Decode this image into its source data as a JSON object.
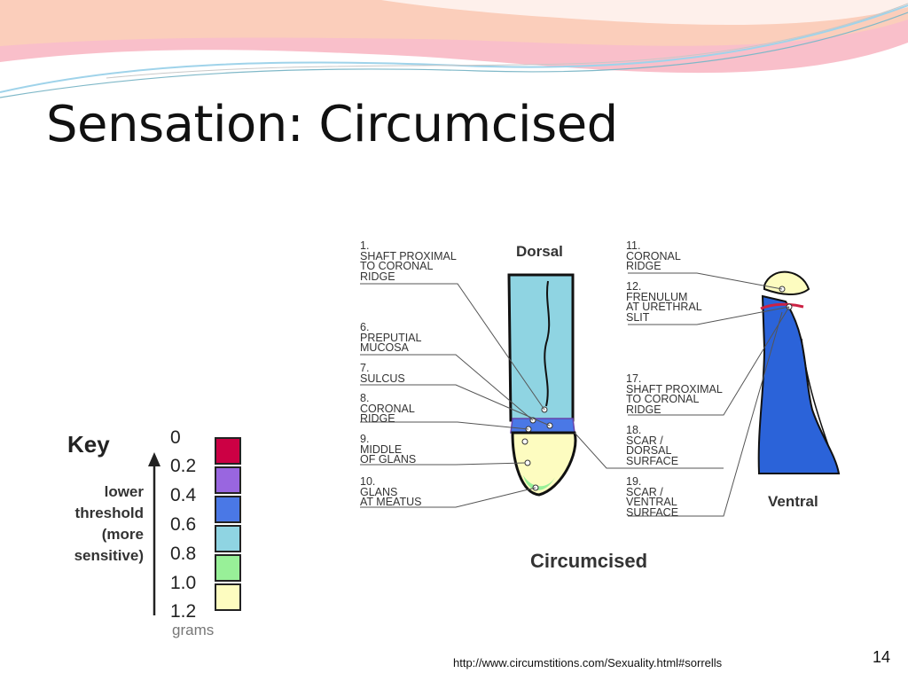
{
  "slide": {
    "title": "Sensation: Circumcised",
    "source_url": "http://www.circumstitions.com/Sexuality.html#sorrells",
    "slide_number": "14"
  },
  "key": {
    "title": "Key",
    "description": [
      "lower",
      "threshold",
      "(more",
      "sensitive)"
    ],
    "unit": "grams",
    "values": [
      "0",
      "0.2",
      "0.4",
      "0.6",
      "0.8",
      "1.0",
      "1.2"
    ],
    "swatch_colors": [
      "#cc0044",
      "#9966e0",
      "#4a78e6",
      "#8fd4e2",
      "#98f098",
      "#fdfcc0"
    ]
  },
  "figure": {
    "caption": "Circumcised",
    "dorsal_label": "Dorsal",
    "ventral_label": "Ventral",
    "left_labels": [
      {
        "number": "1.",
        "text": "SHAFT PROXIMAL\nTO CORONAL\nRIDGE"
      },
      {
        "number": "6.",
        "text": "PREPUTIAL\nMUCOSA"
      },
      {
        "number": "7.",
        "text": "SULCUS"
      },
      {
        "number": "8.",
        "text": "CORONAL\nRIDGE"
      },
      {
        "number": "9.",
        "text": "MIDDLE\nOF GLANS"
      },
      {
        "number": "10.",
        "text": "GLANS\nAT MEATUS"
      }
    ],
    "right_labels": [
      {
        "number": "11.",
        "text": "CORONAL\nRIDGE"
      },
      {
        "number": "12.",
        "text": "FRENULUM\nAT URETHRAL\nSLIT"
      },
      {
        "number": "17.",
        "text": "SHAFT PROXIMAL\nTO CORONAL\nRIDGE"
      },
      {
        "number": "18.",
        "text": "SCAR /\nDORSAL\nSURFACE"
      },
      {
        "number": "19.",
        "text": "SCAR /\nVENTRAL\nSURFACE"
      }
    ],
    "colors": {
      "dorsal_shaft": "#8fd4e2",
      "ventral_shaft": "#2b63d9",
      "glans": "#fdfcc0",
      "glans_inner": "#98f098",
      "scar": "#cc2244",
      "corona_band": "#4a78e6"
    }
  },
  "decor": {
    "banner_colors": [
      "#f7a9b8",
      "#fbd0b8",
      "#c7e8f3"
    ]
  }
}
